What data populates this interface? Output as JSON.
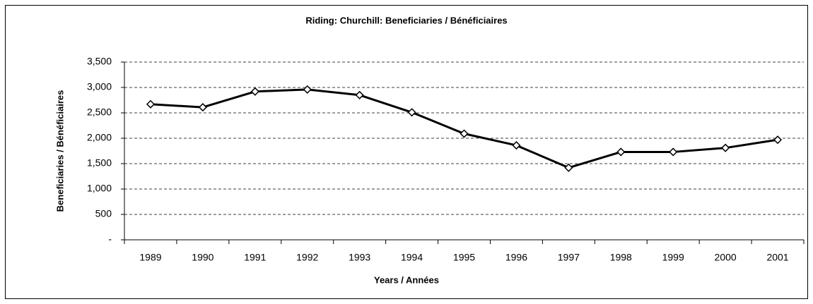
{
  "chart_data": {
    "type": "line",
    "title": "Riding:  Churchill:  Beneficiaries / Bénéficiaires",
    "x_label": "Years / Années",
    "y_label": "Beneficiaries / Bénéficiaires",
    "categories": [
      "1989",
      "1990",
      "1991",
      "1992",
      "1993",
      "1994",
      "1995",
      "1996",
      "1997",
      "1998",
      "1999",
      "2000",
      "2001"
    ],
    "series": [
      {
        "name": "Beneficiaries",
        "color": "#000000",
        "values": [
          2670,
          2610,
          2920,
          2960,
          2850,
          2510,
          2090,
          1860,
          1420,
          1730,
          1730,
          1810,
          1970
        ]
      }
    ],
    "ylim": [
      0,
      3500
    ],
    "yticks": [
      {
        "value": 0,
        "label": "-"
      },
      500,
      {
        "value": 1000,
        "label": "1,000"
      },
      {
        "value": 1500,
        "label": "1,500"
      },
      {
        "value": 2000,
        "label": "2,000"
      },
      {
        "value": 2500,
        "label": "2,500"
      },
      {
        "value": 3000,
        "label": "3,000"
      },
      {
        "value": 3500,
        "label": "3,500"
      }
    ],
    "grid": true
  }
}
